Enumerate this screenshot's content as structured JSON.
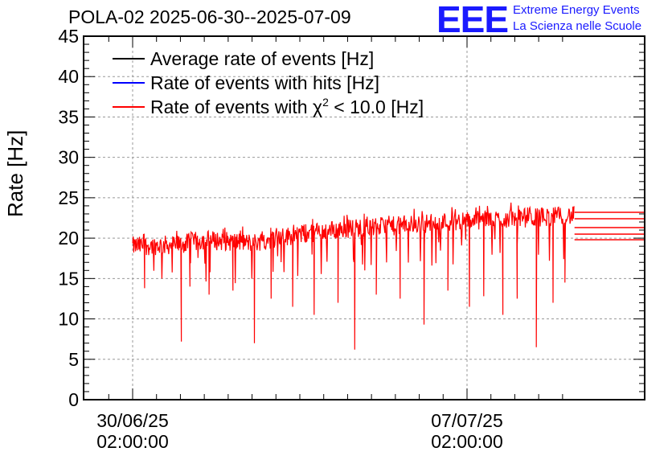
{
  "header": {
    "title": "POLA-02 2025-06-30--2025-07-09",
    "logo_text": "EEE",
    "logo_line1": "Extreme Energy Events",
    "logo_line2": "La Scienza nelle Scuole"
  },
  "colors": {
    "average": "#000000",
    "hits": "#0000ff",
    "chi2": "#ff0000",
    "logo": "#1a1aff",
    "grid": "#999999"
  },
  "chart_data": {
    "type": "line",
    "title": "POLA-02 2025-06-30--2025-07-09",
    "ylabel": "Rate [Hz]",
    "xlabel": "",
    "ylim": [
      0,
      45
    ],
    "yticks": [
      "0",
      "5",
      "10",
      "15",
      "20",
      "25",
      "30",
      "35",
      "40",
      "45"
    ],
    "xticks": [
      {
        "date": "30/06/25",
        "time": "02:00:00"
      },
      {
        "date": "07/07/25",
        "time": "02:00:00"
      }
    ],
    "grid": true,
    "legend_position": "top-left",
    "legend": [
      {
        "pre": "Average rate of events [Hz]",
        "sup": "",
        "post": "",
        "color": "#000000"
      },
      {
        "pre": "Rate of events with hits [Hz]",
        "sup": "",
        "post": "",
        "color": "#0000ff"
      },
      {
        "pre": "Rate of events with χ",
        "sup": "2",
        "post": " < 10.0 [Hz]",
        "color": "#ff0000"
      }
    ],
    "series": [
      {
        "name": "Rate of events with χ2 < 10.0 [Hz]",
        "color": "#ff0000",
        "x_start": "2025-06-30 02:00",
        "x_end": "2025-07-09 08:00",
        "baseline": [
          [
            0.0,
            19.0
          ],
          [
            1.0,
            19.2
          ],
          [
            1.5,
            19.8
          ],
          [
            2.5,
            19.4
          ],
          [
            3.5,
            20.5
          ],
          [
            4.5,
            21.2
          ],
          [
            5.5,
            21.5
          ],
          [
            6.5,
            22.0
          ],
          [
            7.5,
            22.3
          ],
          [
            8.5,
            22.6
          ],
          [
            9.25,
            22.8
          ]
        ],
        "noise_amplitude": 1.2,
        "dips": [
          [
            0.25,
            13.8
          ],
          [
            1.2,
            14.0
          ],
          [
            1.02,
            7.2
          ],
          [
            1.6,
            13.0
          ],
          [
            2.1,
            13.5
          ],
          [
            2.55,
            7.0
          ],
          [
            2.9,
            12.5
          ],
          [
            3.35,
            11.5
          ],
          [
            3.8,
            10.5
          ],
          [
            4.3,
            12.0
          ],
          [
            4.65,
            6.2
          ],
          [
            5.1,
            13.0
          ],
          [
            5.6,
            12.5
          ],
          [
            6.1,
            9.3
          ],
          [
            6.6,
            13.5
          ],
          [
            7.05,
            11.5
          ],
          [
            7.35,
            12.8
          ],
          [
            7.75,
            10.5
          ],
          [
            8.05,
            12.5
          ],
          [
            8.45,
            6.5
          ],
          [
            8.8,
            12.0
          ],
          [
            9.05,
            14.5
          ]
        ],
        "end_levels": [
          19.8,
          20.5,
          21.3,
          22.4,
          23.2
        ]
      }
    ]
  }
}
